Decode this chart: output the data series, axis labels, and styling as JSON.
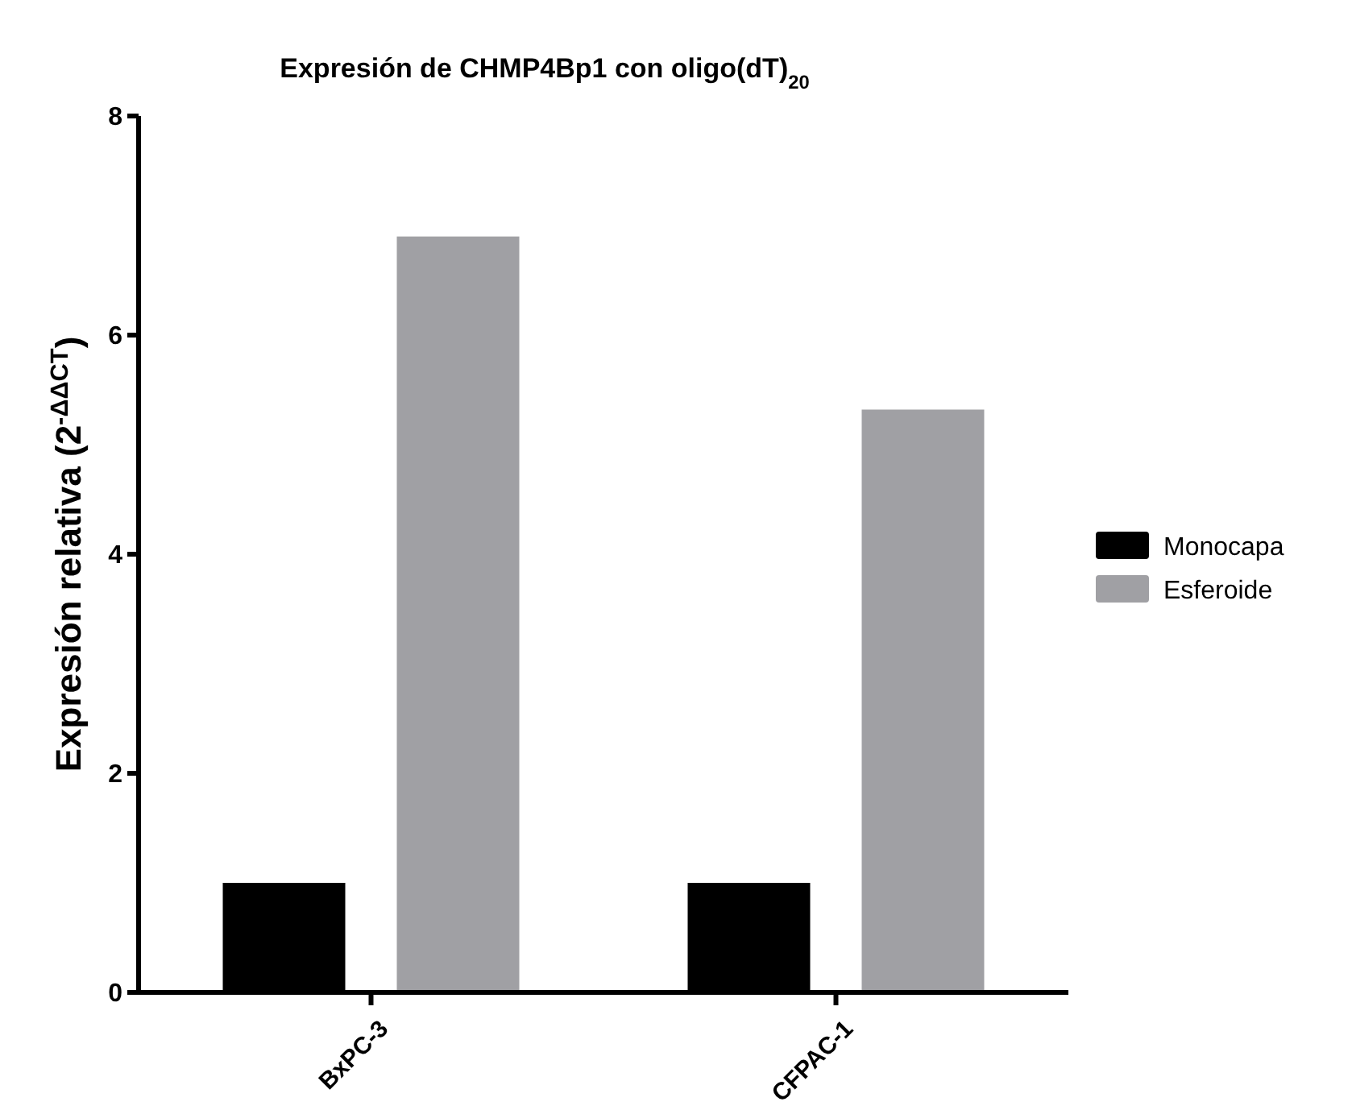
{
  "chart_data": {
    "type": "bar",
    "title": "Expresión de CHMP4Bp1 con oligo(dT)$_{20}$",
    "ylabel": "Expresión relativa (2$^{-ΔΔCT}$)",
    "categories": [
      "BxPC-3",
      "CFPAC-1"
    ],
    "series": [
      {
        "name": "Monocapa",
        "color": "#000000",
        "values": [
          1.0,
          1.0
        ]
      },
      {
        "name": "Esferoide",
        "color": "#a0a0a4",
        "values": [
          6.9,
          5.32
        ]
      }
    ],
    "ylim": [
      0,
      8
    ],
    "yticks": [
      0,
      2,
      4,
      6,
      8
    ],
    "legend": "right",
    "grid": false
  }
}
